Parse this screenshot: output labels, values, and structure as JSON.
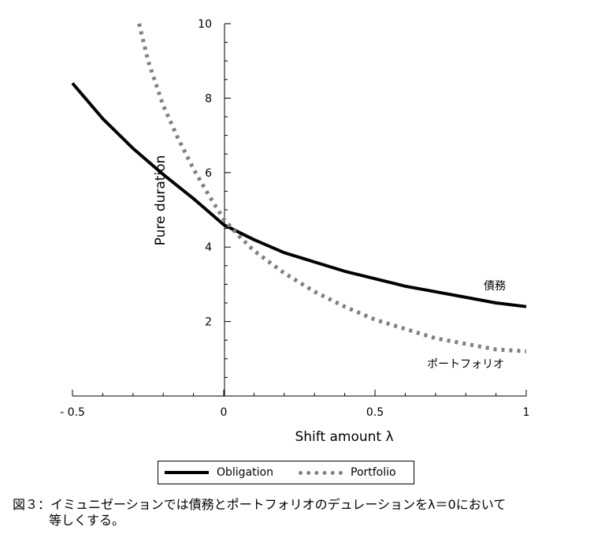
{
  "chart_data": {
    "type": "line",
    "xlabel": "Shift amount λ",
    "ylabel": "Pure duration",
    "xlim": [
      -0.5,
      1
    ],
    "ylim": [
      0,
      10
    ],
    "x_ticks": [
      {
        "value": -0.5,
        "label": "- 0.5"
      },
      {
        "value": 0,
        "label": "0"
      },
      {
        "value": 0.5,
        "label": "0.5"
      },
      {
        "value": 1,
        "label": "1"
      }
    ],
    "y_ticks": [
      {
        "value": 2,
        "label": "2"
      },
      {
        "value": 4,
        "label": "4"
      },
      {
        "value": 6,
        "label": "6"
      },
      {
        "value": 8,
        "label": "8"
      },
      {
        "value": 10,
        "label": "10"
      }
    ],
    "grid": false,
    "legend_position": "bottom",
    "series": [
      {
        "name": "Obligation",
        "annotation": "債務",
        "style": "solid",
        "color": "#000000",
        "x": [
          -0.5,
          -0.4,
          -0.3,
          -0.2,
          -0.1,
          0,
          0.1,
          0.2,
          0.3,
          0.4,
          0.5,
          0.6,
          0.7,
          0.8,
          0.9,
          1.0
        ],
        "y": [
          8.4,
          7.45,
          6.65,
          5.95,
          5.3,
          4.6,
          4.2,
          3.85,
          3.6,
          3.35,
          3.15,
          2.95,
          2.8,
          2.65,
          2.5,
          2.4
        ]
      },
      {
        "name": "Portfolio",
        "annotation": "ポートフォリオ",
        "style": "dotted",
        "color": "#808080",
        "x": [
          -0.28,
          -0.25,
          -0.2,
          -0.15,
          -0.1,
          -0.05,
          0,
          0.05,
          0.1,
          0.2,
          0.3,
          0.4,
          0.5,
          0.6,
          0.7,
          0.8,
          0.9,
          1.0
        ],
        "y": [
          10.0,
          9.0,
          7.8,
          6.9,
          6.1,
          5.4,
          4.75,
          4.3,
          3.9,
          3.3,
          2.8,
          2.4,
          2.05,
          1.8,
          1.55,
          1.4,
          1.25,
          1.2
        ]
      }
    ]
  },
  "caption": {
    "line1": "図３：イミュニゼーションでは債務とポートフォリオのデュレーションをλ＝0において",
    "line2": "等しくする。"
  }
}
